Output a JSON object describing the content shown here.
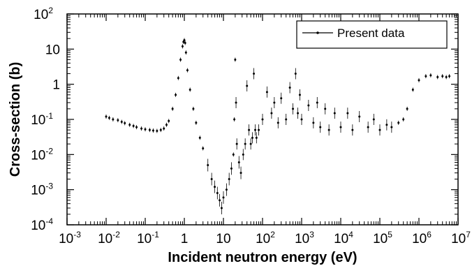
{
  "chart_data": {
    "type": "scatter",
    "title": "",
    "xlabel": "Incident neutron energy (eV)",
    "ylabel": "Cross-section (b)",
    "xscale": "log",
    "yscale": "log",
    "xlim": [
      0.001,
      10000000
    ],
    "ylim": [
      0.0001,
      100
    ],
    "x_ticks": [
      {
        "base": "10",
        "exp": "-3"
      },
      {
        "base": "10",
        "exp": "-2"
      },
      {
        "base": "10",
        "exp": "-1"
      },
      {
        "base": "1",
        "exp": ""
      },
      {
        "base": "10",
        "exp": ""
      },
      {
        "base": "10",
        "exp": "2"
      },
      {
        "base": "10",
        "exp": "3"
      },
      {
        "base": "10",
        "exp": "4"
      },
      {
        "base": "10",
        "exp": "5"
      },
      {
        "base": "10",
        "exp": "6"
      },
      {
        "base": "10",
        "exp": "7"
      }
    ],
    "y_ticks": [
      {
        "base": "10",
        "exp": "-4"
      },
      {
        "base": "10",
        "exp": "-3"
      },
      {
        "base": "10",
        "exp": "-2"
      },
      {
        "base": "10",
        "exp": "-1"
      },
      {
        "base": "1",
        "exp": ""
      },
      {
        "base": "10",
        "exp": ""
      },
      {
        "base": "10",
        "exp": "2"
      }
    ],
    "grid": false,
    "legend_position": "top-right",
    "series": [
      {
        "name": "Present data",
        "color": "#000000",
        "marker": "dot-with-error-bars",
        "x": [
          0.01,
          0.012,
          0.015,
          0.02,
          0.025,
          0.03,
          0.04,
          0.05,
          0.06,
          0.08,
          0.1,
          0.13,
          0.16,
          0.2,
          0.25,
          0.3,
          0.35,
          0.4,
          0.5,
          0.6,
          0.7,
          0.8,
          0.9,
          0.95,
          1.0,
          1.05,
          1.1,
          1.2,
          1.4,
          1.7,
          2.0,
          2.5,
          3.0,
          4.0,
          5.0,
          6.0,
          7.0,
          8.0,
          9.0,
          10.0,
          12.0,
          14.0,
          16.0,
          18.0,
          19.0,
          20.0,
          21.0,
          22.0,
          25.0,
          28.0,
          32.0,
          36.0,
          40.0,
          45.0,
          50.0,
          55.0,
          60.0,
          65.0,
          70.0,
          80.0,
          100.0,
          130.0,
          170.0,
          200.0,
          250.0,
          300.0,
          400.0,
          500.0,
          600.0,
          700.0,
          800.0,
          900.0,
          1000.0,
          1500.0,
          2000.0,
          2500.0,
          3000.0,
          4000.0,
          5000.0,
          7000.0,
          10000.0,
          15000.0,
          20000.0,
          30000.0,
          50000.0,
          70000.0,
          100000.0,
          150000.0,
          200000.0,
          300000.0,
          400000.0,
          500000.0,
          700000.0,
          1000000.0,
          1500000.0,
          2000000.0,
          3000000.0,
          4000000.0,
          5000000.0,
          6000000.0
        ],
        "y": [
          0.12,
          0.11,
          0.1,
          0.095,
          0.085,
          0.078,
          0.07,
          0.065,
          0.06,
          0.055,
          0.052,
          0.05,
          0.048,
          0.047,
          0.05,
          0.055,
          0.07,
          0.09,
          0.2,
          0.5,
          1.5,
          5.0,
          12.0,
          16.0,
          18.0,
          15.0,
          8.0,
          2.5,
          0.7,
          0.2,
          0.08,
          0.03,
          0.015,
          0.005,
          0.002,
          0.0012,
          0.0008,
          0.0005,
          0.0003,
          0.0006,
          0.001,
          0.002,
          0.004,
          0.01,
          0.1,
          5.0,
          0.3,
          0.02,
          0.006,
          0.003,
          0.01,
          0.02,
          0.9,
          0.05,
          0.02,
          0.03,
          2.0,
          0.05,
          0.03,
          0.05,
          0.1,
          0.6,
          0.15,
          0.3,
          0.08,
          0.4,
          0.1,
          0.8,
          0.2,
          2.0,
          0.15,
          0.5,
          0.1,
          0.25,
          0.08,
          0.3,
          0.06,
          0.2,
          0.05,
          0.15,
          0.06,
          0.15,
          0.05,
          0.12,
          0.06,
          0.1,
          0.05,
          0.07,
          0.06,
          0.08,
          0.1,
          0.2,
          0.7,
          1.3,
          1.7,
          1.8,
          1.6,
          1.7,
          1.6,
          1.7
        ]
      }
    ]
  }
}
